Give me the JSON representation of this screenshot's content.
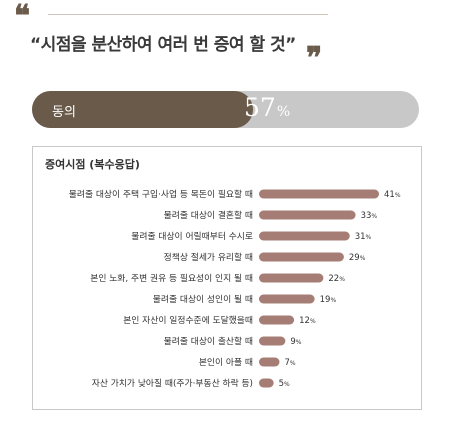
{
  "headline": {
    "quote_open": "❝",
    "text": "“시점을 분산하여 여러 번 증여 할 것”",
    "quote_close": "❞"
  },
  "agree": {
    "label": "동의",
    "value": 57,
    "value_text": "57",
    "unit": "%"
  },
  "panel": {
    "title": "증여시점 (복수응답)"
  },
  "colors": {
    "bar": "#a57d74",
    "agree_fill": "#6a5a4a",
    "agree_track": "#c8c8c8"
  },
  "chart_data": {
    "type": "bar",
    "orientation": "horizontal",
    "categories": [
      "물려줄 대상이 주택 구입·사업 등 목돈이 필요할 때",
      "물려줄 대상이 결혼할 때",
      "물려줄 대상이 어릴때부터 수시로",
      "정책상 절세가 유리할 때",
      "본인 노화, 주변 권유 등 필요성이 인지 될 때",
      "물려줄 대상이 성인이 될 때",
      "본인 자산이 일정수준에 도달했을때",
      "물려줄 대상이 출산할 때",
      "본인이 아플 때",
      "자산 가치가 낮아질 때(주가·부동산 하락 등)"
    ],
    "values": [
      41,
      33,
      31,
      29,
      22,
      19,
      12,
      9,
      7,
      5
    ],
    "unit": "%",
    "xlim": [
      0,
      41
    ]
  }
}
